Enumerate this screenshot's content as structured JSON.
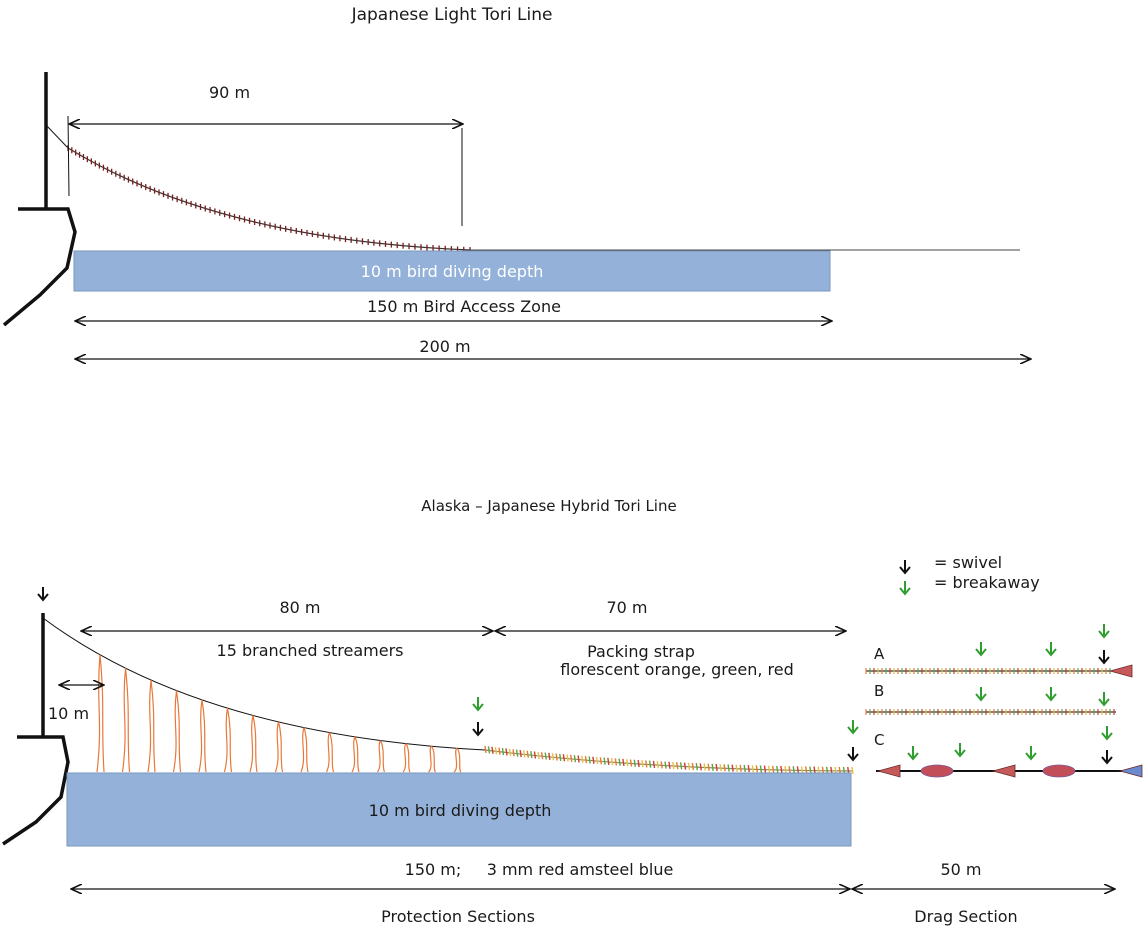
{
  "top_diagram": {
    "title": "Japanese Light Tori Line",
    "dim_90": "90 m",
    "depth_label": "10 m bird diving depth",
    "access_zone": "150 m Bird Access Zone",
    "total": "200 m"
  },
  "bottom_diagram": {
    "title": "Alaska – Japanese Hybrid Tori Line",
    "dim_80": "80 m",
    "streamers": "15 branched streamers",
    "dim_70": "70 m",
    "strap_line1": "Packing strap",
    "strap_line2": "florescent orange, green, red",
    "dim_10": "10 m",
    "depth_label": "10 m bird diving depth",
    "line_spec": "150 m;     3 mm red amsteel blue",
    "dim_50": "50 m",
    "protection": "Protection Sections",
    "drag": "Drag Section"
  },
  "legend": {
    "swivel": "= swivel",
    "breakaway": "= breakaway"
  },
  "options": [
    "A",
    "B",
    "C"
  ],
  "colors": {
    "water": "#94b2d9",
    "water_edge": "#7a96bd",
    "streamer": "#e8783a",
    "swivel": "#111111",
    "breakaway": "#2e9e2e",
    "cone": "#c65a5a",
    "float": "#c24e5a",
    "bead": "#7a1f1f"
  }
}
